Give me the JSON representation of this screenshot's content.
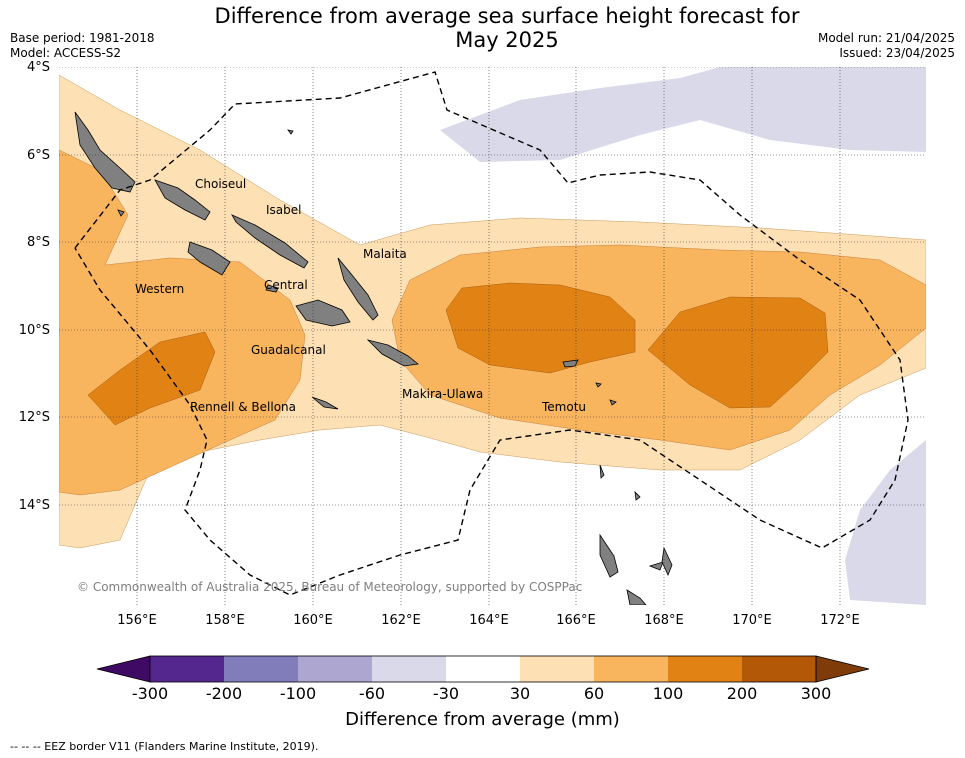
{
  "header": {
    "title_line1": "Difference from average sea surface height forecast for",
    "title_line2": "May 2025",
    "base_period": "Base period: 1981-2018",
    "model": "Model: ACCESS-S2",
    "model_run": "Model run: 21/04/2025",
    "issued": "Issued: 23/04/2025"
  },
  "axes": {
    "latitudes": [
      "4°S",
      "6°S",
      "8°S",
      "10°S",
      "12°S",
      "14°S"
    ],
    "longitudes": [
      "156°E",
      "158°E",
      "160°E",
      "162°E",
      "164°E",
      "166°E",
      "168°E",
      "170°E",
      "172°E"
    ],
    "lat_range": [
      -16.2,
      -4
    ],
    "lon_range": [
      154.3,
      174
    ]
  },
  "places": {
    "choiseul": "Choiseul",
    "isabel": "Isabel",
    "malaita": "Malaita",
    "western": "Western",
    "central": "Central",
    "guadalcanal": "Guadalcanal",
    "rennell": "Rennell & Bellona",
    "makira": "Makira-Ulawa",
    "temotu": "Temotu"
  },
  "colorbar": {
    "ticks": [
      "-300",
      "-200",
      "-100",
      "-60",
      "-30",
      "30",
      "60",
      "100",
      "200",
      "300"
    ],
    "colors": [
      "#3f0a63",
      "#54278f",
      "#807dba",
      "#aca6d0",
      "#d9d9ea",
      "#ffffff",
      "#fde0b4",
      "#f9b45e",
      "#e08214",
      "#b35806",
      "#7f3b08"
    ],
    "label": "Difference from average (mm)"
  },
  "copyright": "© Commonwealth of Australia 2025, Bureau of Meteorology, supported by COSPPac",
  "footnote": "--  --  -- EEZ border V11 (Flanders Marine Institute, 2019)."
}
